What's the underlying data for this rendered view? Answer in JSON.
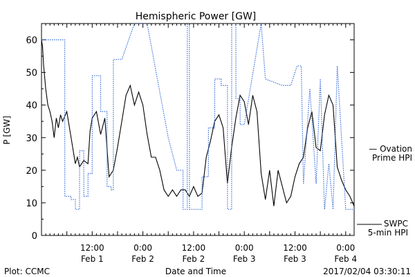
{
  "chart_data": {
    "type": "line",
    "title": "Hemispheric Power [GW]",
    "xlabel": "Date and Time",
    "ylabel": "P [GW]",
    "ylim": [
      0,
      65
    ],
    "xlim": [
      "2017-02-01T00:00",
      "2017-02-04T02:00"
    ],
    "yticks": [
      0,
      10,
      20,
      30,
      40,
      50,
      60
    ],
    "xticks": [
      {
        "time": "2017-02-01T12:00",
        "line1": "12:00",
        "line2": "Feb 1"
      },
      {
        "time": "2017-02-02T00:00",
        "line1": "0:00",
        "line2": "Feb 2"
      },
      {
        "time": "2017-02-02T12:00",
        "line1": "12:00",
        "line2": "Feb 2"
      },
      {
        "time": "2017-02-03T00:00",
        "line1": "0:00",
        "line2": "Feb 3"
      },
      {
        "time": "2017-02-03T12:00",
        "line1": "12:00",
        "line2": "Feb 3"
      },
      {
        "time": "2017-02-04T00:00",
        "line1": "0:00",
        "line2": "Feb 4"
      }
    ],
    "grid": false,
    "legend_position": "right",
    "series": [
      {
        "name": "SWPC 5-min HPI",
        "color": "#000000",
        "style": "solid",
        "x": [
          "2017-02-01T00:00",
          "2017-02-01T00:15",
          "2017-02-01T00:30",
          "2017-02-01T01:00",
          "2017-02-01T01:30",
          "2017-02-01T02:00",
          "2017-02-01T02:30",
          "2017-02-01T03:00",
          "2017-02-01T03:30",
          "2017-02-01T04:00",
          "2017-02-01T04:30",
          "2017-02-01T05:00",
          "2017-02-01T06:00",
          "2017-02-01T07:00",
          "2017-02-01T08:00",
          "2017-02-01T08:30",
          "2017-02-01T09:00",
          "2017-02-01T10:00",
          "2017-02-01T11:00",
          "2017-02-01T11:30",
          "2017-02-01T12:00",
          "2017-02-01T13:00",
          "2017-02-01T14:00",
          "2017-02-01T15:00",
          "2017-02-01T16:00",
          "2017-02-01T17:00",
          "2017-02-01T18:00",
          "2017-02-01T19:00",
          "2017-02-01T20:00",
          "2017-02-01T21:00",
          "2017-02-01T22:00",
          "2017-02-01T23:00",
          "2017-02-02T00:00",
          "2017-02-02T01:00",
          "2017-02-02T02:00",
          "2017-02-02T03:00",
          "2017-02-02T04:00",
          "2017-02-02T05:00",
          "2017-02-02T06:00",
          "2017-02-02T07:00",
          "2017-02-02T08:00",
          "2017-02-02T09:00",
          "2017-02-02T10:00",
          "2017-02-02T11:00",
          "2017-02-02T12:00",
          "2017-02-02T13:00",
          "2017-02-02T14:00",
          "2017-02-02T15:00",
          "2017-02-02T16:00",
          "2017-02-02T17:00",
          "2017-02-02T18:00",
          "2017-02-02T19:00",
          "2017-02-02T20:00",
          "2017-02-02T21:00",
          "2017-02-02T22:00",
          "2017-02-02T23:00",
          "2017-02-03T00:00",
          "2017-02-03T01:00",
          "2017-02-03T02:00",
          "2017-02-03T03:00",
          "2017-02-03T04:00",
          "2017-02-03T05:00",
          "2017-02-03T06:00",
          "2017-02-03T07:00",
          "2017-02-03T08:00",
          "2017-02-03T09:00",
          "2017-02-03T10:00",
          "2017-02-03T11:00",
          "2017-02-03T12:00",
          "2017-02-03T13:00",
          "2017-02-03T14:00",
          "2017-02-03T15:00",
          "2017-02-03T16:00",
          "2017-02-03T17:00",
          "2017-02-03T18:00",
          "2017-02-03T19:00",
          "2017-02-03T20:00",
          "2017-02-03T21:00",
          "2017-02-03T22:00",
          "2017-02-03T23:00",
          "2017-02-04T00:00",
          "2017-02-04T01:00",
          "2017-02-04T02:00"
        ],
        "y": [
          60,
          58,
          52,
          45,
          40,
          38,
          35,
          30,
          36,
          33,
          37,
          35,
          38,
          30,
          22,
          24,
          21,
          23,
          22,
          32,
          36,
          38,
          31,
          36,
          18,
          20,
          27,
          35,
          43,
          46,
          40,
          44,
          40,
          31,
          24,
          24,
          20,
          14,
          12,
          14,
          12,
          14,
          14,
          12,
          15,
          12,
          13,
          24,
          29,
          35,
          37,
          33,
          16,
          27,
          36,
          43,
          41,
          34,
          43,
          38,
          19,
          11,
          20,
          9,
          20,
          15,
          10,
          12,
          18,
          22,
          24,
          33,
          38,
          27,
          26,
          37,
          43,
          40,
          21,
          17,
          14,
          12,
          9
        ]
      },
      {
        "name": "Ovation Prime HPI",
        "color": "#3a6fd8",
        "style": "dotted",
        "x": [
          "2017-02-01T00:00",
          "2017-02-01T05:30",
          "2017-02-01T05:31",
          "2017-02-01T07:00",
          "2017-02-01T07:01",
          "2017-02-01T08:00",
          "2017-02-01T08:01",
          "2017-02-01T09:00",
          "2017-02-01T09:01",
          "2017-02-01T10:00",
          "2017-02-01T10:01",
          "2017-02-01T11:00",
          "2017-02-01T11:01",
          "2017-02-01T12:00",
          "2017-02-01T12:01",
          "2017-02-01T14:00",
          "2017-02-01T14:01",
          "2017-02-01T15:30",
          "2017-02-01T15:31",
          "2017-02-01T16:30",
          "2017-02-01T16:31",
          "2017-02-01T17:00",
          "2017-02-01T17:01",
          "2017-02-01T19:00",
          "2017-02-01T22:00",
          "2017-02-02T01:00",
          "2017-02-02T06:00",
          "2017-02-02T08:00",
          "2017-02-02T09:30",
          "2017-02-02T09:31",
          "2017-02-02T10:30",
          "2017-02-02T10:31",
          "2017-02-02T11:00",
          "2017-02-02T11:01",
          "2017-02-02T14:00",
          "2017-02-02T14:01",
          "2017-02-02T15:30",
          "2017-02-02T15:31",
          "2017-02-02T17:00",
          "2017-02-02T17:01",
          "2017-02-02T18:30",
          "2017-02-02T18:31",
          "2017-02-02T20:00",
          "2017-02-02T20:01",
          "2017-02-02T21:00",
          "2017-02-02T21:01",
          "2017-02-02T22:00",
          "2017-02-02T22:01",
          "2017-02-02T23:00",
          "2017-02-02T23:01",
          "2017-02-03T00:00",
          "2017-02-03T04:00",
          "2017-02-03T05:00",
          "2017-02-03T09:00",
          "2017-02-03T11:00",
          "2017-02-03T12:30",
          "2017-02-03T13:30",
          "2017-02-03T14:00",
          "2017-02-03T14:01",
          "2017-02-03T15:30",
          "2017-02-03T15:31",
          "2017-02-03T17:00",
          "2017-02-03T17:01",
          "2017-02-03T18:00",
          "2017-02-03T18:01",
          "2017-02-03T19:00",
          "2017-02-03T19:01",
          "2017-02-03T20:00",
          "2017-02-03T20:01",
          "2017-02-03T21:00",
          "2017-02-03T21:01",
          "2017-02-03T22:00",
          "2017-02-03T22:01",
          "2017-02-03T23:00",
          "2017-02-03T23:01",
          "2017-02-04T00:00",
          "2017-02-04T00:01",
          "2017-02-04T01:00",
          "2017-02-04T01:01",
          "2017-02-04T02:00"
        ],
        "y": [
          60,
          60,
          12,
          12,
          11,
          11,
          8,
          8,
          26,
          26,
          12,
          12,
          19,
          19,
          49,
          49,
          38,
          38,
          15,
          15,
          14,
          14,
          54,
          54,
          65,
          65,
          30,
          20,
          20,
          8,
          8,
          65,
          65,
          8,
          8,
          18,
          18,
          33,
          33,
          48,
          48,
          46,
          46,
          8,
          8,
          65,
          65,
          42,
          42,
          34,
          34,
          65,
          48,
          46,
          46,
          52,
          52,
          16,
          16,
          45,
          45,
          16,
          16,
          48,
          48,
          8,
          8,
          22,
          22,
          8,
          8,
          52,
          52,
          30,
          30,
          8,
          8,
          8,
          8,
          8
        ]
      }
    ],
    "legend": [
      {
        "text": "— Ovation",
        "color": "#3a6fd8"
      },
      {
        "text": "Prime HPI",
        "color": "#3a6fd8"
      },
      {
        "text": "SWPC",
        "color": "#000000"
      },
      {
        "text": "5-min HPI",
        "color": "#000000"
      }
    ],
    "footer": {
      "left": "Plot: CCMC",
      "right": "2017/02/04 03:30:11"
    }
  }
}
